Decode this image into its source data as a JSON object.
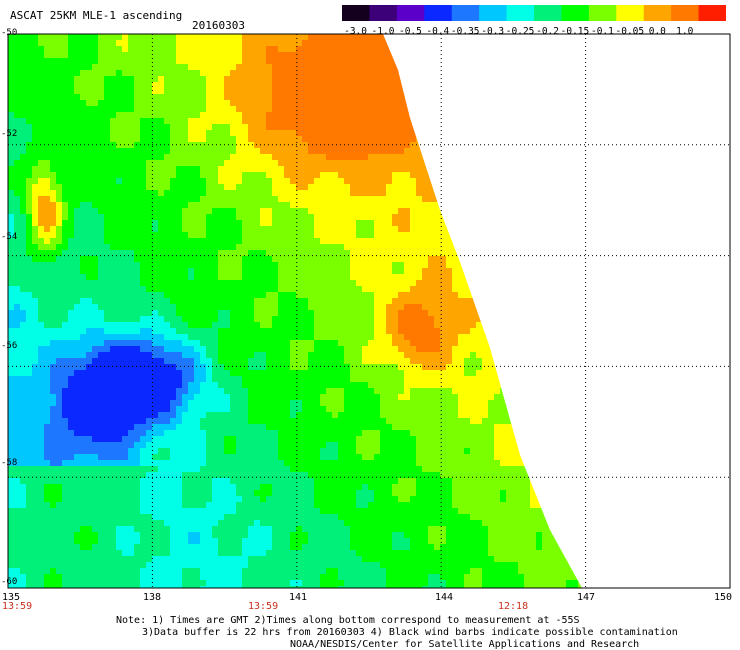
{
  "header": {
    "title": "ASCAT 25KM MLE-1 ascending",
    "date": "20160303"
  },
  "colorbar": {
    "labels": [
      "-3.0",
      "-1.0",
      "-0.5",
      "-0.4",
      "-0.35",
      "-0.3",
      "-0.25",
      "-0.2",
      "-0.15",
      "-0.1",
      "-0.05",
      "0.0",
      "1.0"
    ],
    "colors": [
      "#14001e",
      "#3c0078",
      "#5a00c8",
      "#0a28ff",
      "#1e78ff",
      "#00c8ff",
      "#00ffe6",
      "#00f07a",
      "#00ff00",
      "#7aff00",
      "#ffff00",
      "#ffa500",
      "#ff7800",
      "#ff1e00"
    ]
  },
  "axes": {
    "x_ticks": [
      "135",
      "138",
      "141",
      "144",
      "147",
      "150"
    ],
    "y_ticks": [
      "-50",
      "-52",
      "-54",
      "-56",
      "-58",
      "-60"
    ],
    "xlim": [
      135,
      150
    ],
    "ylim": [
      -60,
      -50
    ]
  },
  "times": [
    {
      "lon": 135,
      "label": "13:59"
    },
    {
      "lon": 141,
      "label": "13:59"
    },
    {
      "lon": 146,
      "label": "12:18"
    }
  ],
  "notes": {
    "line1": "Note: 1) Times are GMT 2)Times along bottom correspond to measurement at -55S",
    "line2": "3)Data buffer is 22 hrs from 20160303 4) Black wind barbs indicate possible contamination",
    "line3": "NOAA/NESDIS/Center for Satellite Applications and Research"
  }
}
